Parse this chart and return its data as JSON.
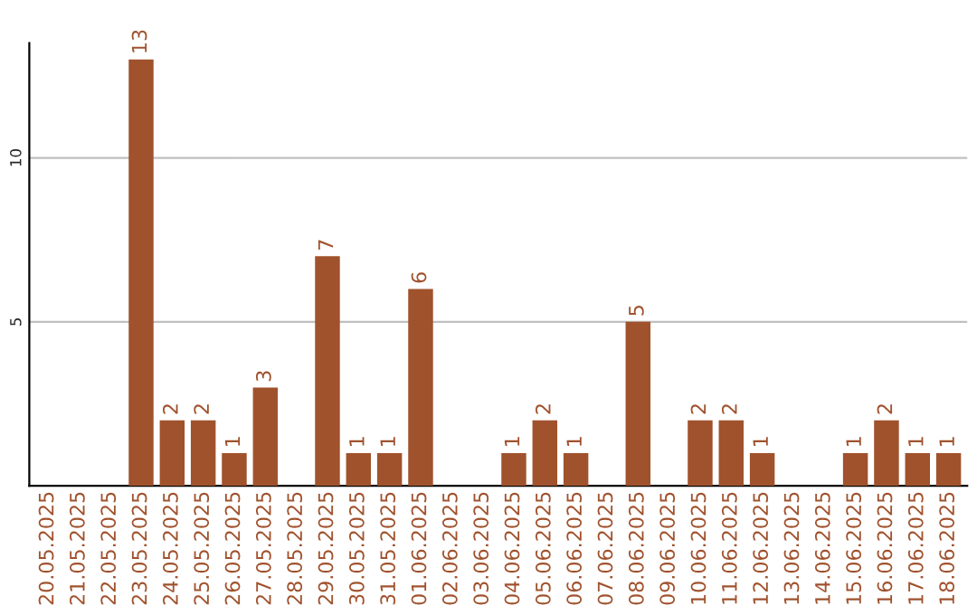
{
  "chart_data": {
    "type": "bar",
    "categories": [
      "20.05.2025",
      "21.05.2025",
      "22.05.2025",
      "23.05.2025",
      "24.05.2025",
      "25.05.2025",
      "26.05.2025",
      "27.05.2025",
      "28.05.2025",
      "29.05.2025",
      "30.05.2025",
      "31.05.2025",
      "01.06.2025",
      "02.06.2025",
      "03.06.2025",
      "04.06.2025",
      "05.06.2025",
      "06.06.2025",
      "07.06.2025",
      "08.06.2025",
      "09.06.2025",
      "10.06.2025",
      "11.06.2025",
      "12.06.2025",
      "13.06.2025",
      "14.06.2025",
      "15.06.2025",
      "16.06.2025",
      "17.06.2025",
      "18.06.2025"
    ],
    "values": [
      null,
      null,
      null,
      13,
      2,
      2,
      1,
      3,
      null,
      7,
      1,
      1,
      6,
      null,
      null,
      1,
      2,
      1,
      null,
      5,
      null,
      2,
      2,
      1,
      null,
      null,
      1,
      2,
      1,
      1
    ],
    "value_labels": [
      null,
      null,
      null,
      "13",
      "2",
      "2",
      "1",
      "3",
      null,
      "7",
      "1",
      "1",
      "6",
      null,
      null,
      "1",
      "2",
      "1",
      null,
      "5",
      null,
      "2",
      "2",
      "1",
      null,
      null,
      "1",
      "2",
      "1",
      "1"
    ],
    "color": "#a0522d",
    "ylim": [
      0,
      13.5
    ],
    "yticks": [
      5,
      10
    ],
    "grid": "y",
    "legend": false
  }
}
